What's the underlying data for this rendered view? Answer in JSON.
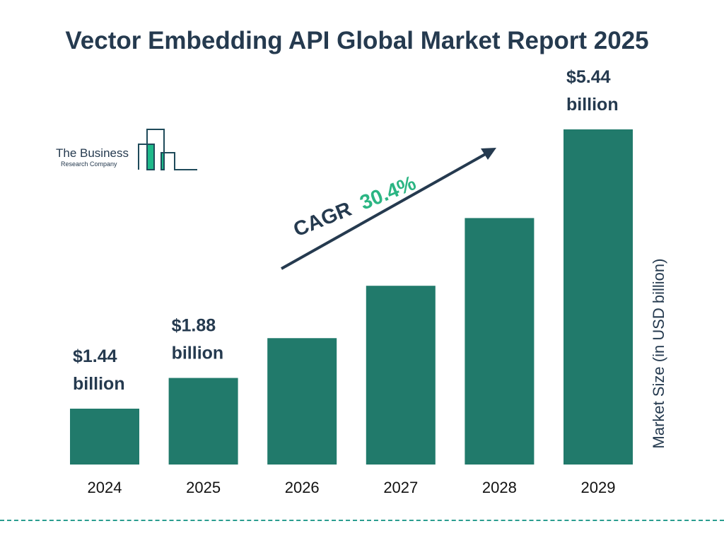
{
  "chart_data": {
    "type": "bar",
    "title": "Vector Embedding API Global Market Report 2025",
    "categories": [
      "2024",
      "2025",
      "2026",
      "2027",
      "2028",
      "2029"
    ],
    "values": [
      1.44,
      1.88,
      2.45,
      3.2,
      4.17,
      5.44
    ],
    "values_note_estimated": [
      false,
      false,
      true,
      true,
      true,
      false
    ],
    "data_labels": {
      "0": "$1.44 billion",
      "1": "$1.88 billion",
      "5": "$5.44 billion"
    },
    "ylabel": "Market Size (in USD billion)",
    "xlabel": "",
    "grid": false,
    "bar_color": "#217a6b",
    "annotation": {
      "label": "CAGR",
      "value": "30.4%",
      "value_color": "#2bb583",
      "text_color": "#253a4f"
    }
  },
  "logo": {
    "line1": "The Business",
    "line2": "Research Company",
    "accent": "#1fb98a",
    "stroke": "#1f4a5a"
  },
  "footer_line_color": "#2a9d8f"
}
